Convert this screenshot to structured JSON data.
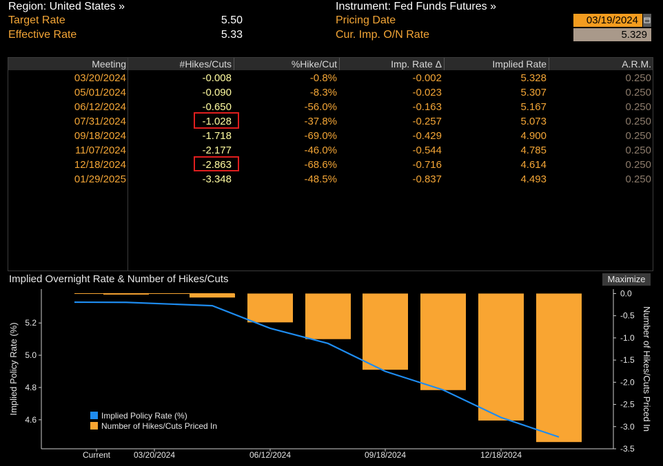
{
  "header": {
    "region": "Region: United States »",
    "instrument": "Instrument: Fed Funds Futures »",
    "target_rate_label": "Target Rate",
    "target_rate_value": "5.50",
    "effective_rate_label": "Effective Rate",
    "effective_rate_value": "5.33",
    "pricing_date_label": "Pricing Date",
    "pricing_date_value": "03/19/2024",
    "cur_imp_label": "Cur. Imp. O/N Rate",
    "cur_imp_value": "5.329"
  },
  "table": {
    "columns": [
      "Meeting",
      "#Hikes/Cuts",
      "%Hike/Cut",
      "Imp. Rate Δ",
      "Implied Rate",
      "A.R.M."
    ],
    "rows": [
      {
        "meeting": "03/20/2024",
        "hikes": "-0.008",
        "pct": "-0.8%",
        "delta": "-0.002",
        "implied": "5.328",
        "arm": "0.250"
      },
      {
        "meeting": "05/01/2024",
        "hikes": "-0.090",
        "pct": "-8.3%",
        "delta": "-0.023",
        "implied": "5.307",
        "arm": "0.250"
      },
      {
        "meeting": "06/12/2024",
        "hikes": "-0.650",
        "pct": "-56.0%",
        "delta": "-0.163",
        "implied": "5.167",
        "arm": "0.250"
      },
      {
        "meeting": "07/31/2024",
        "hikes": "-1.028",
        "pct": "-37.8%",
        "delta": "-0.257",
        "implied": "5.073",
        "arm": "0.250"
      },
      {
        "meeting": "09/18/2024",
        "hikes": "-1.718",
        "pct": "-69.0%",
        "delta": "-0.429",
        "implied": "4.900",
        "arm": "0.250"
      },
      {
        "meeting": "11/07/2024",
        "hikes": "-2.177",
        "pct": "-46.0%",
        "delta": "-0.544",
        "implied": "4.785",
        "arm": "0.250"
      },
      {
        "meeting": "12/18/2024",
        "hikes": "-2.863",
        "pct": "-68.6%",
        "delta": "-0.716",
        "implied": "4.614",
        "arm": "0.250"
      },
      {
        "meeting": "01/29/2025",
        "hikes": "-3.348",
        "pct": "-48.5%",
        "delta": "-0.837",
        "implied": "4.493",
        "arm": "0.250"
      }
    ]
  },
  "chart": {
    "title": "Implied Overnight Rate & Number of Hikes/Cuts",
    "maximize_label": "Maximize"
  },
  "chart_data": {
    "type": "bar",
    "x_tick_labels": [
      "Current",
      "03/20/2024",
      "06/12/2024",
      "09/18/2024",
      "12/18/2024"
    ],
    "categories": [
      "Current",
      "03/20/2024",
      "05/01/2024",
      "06/12/2024",
      "07/31/2024",
      "09/18/2024",
      "11/07/2024",
      "12/18/2024",
      "01/29/2025"
    ],
    "series": [
      {
        "name": "Implied Policy Rate (%)",
        "type": "line",
        "axis": "left",
        "color": "#1e8cf0",
        "values": [
          5.329,
          5.328,
          5.307,
          5.167,
          5.073,
          4.9,
          4.785,
          4.614,
          4.493
        ]
      },
      {
        "name": "Number of Hikes/Cuts Priced In",
        "type": "bar",
        "axis": "right",
        "color": "#f9a532",
        "values": [
          0,
          -0.008,
          -0.09,
          -0.65,
          -1.028,
          -1.718,
          -2.177,
          -2.863,
          -3.348
        ]
      }
    ],
    "ylabel_left": "Implied Policy Rate (%)",
    "ylabel_right": "Number of Hikes/Cuts Priced In",
    "ylim_left": [
      4.42,
      5.41
    ],
    "ylim_right": [
      -3.5,
      0.1
    ],
    "yticks_left": [
      "5.2",
      "5.0",
      "4.8",
      "4.6"
    ],
    "yticks_right": [
      "0.0",
      "-0.5",
      "-1.0",
      "-1.5",
      "-2.0",
      "-2.5",
      "-3.0",
      "-3.5"
    ],
    "legend_placement": "bottom-left",
    "grid": false
  },
  "colors": {
    "accent_orange": "#f3a536",
    "value_yellow": "#fffba0",
    "highlight_red": "#e01e1e",
    "line_blue": "#1e8cf0",
    "bar_orange": "#f9a532"
  }
}
